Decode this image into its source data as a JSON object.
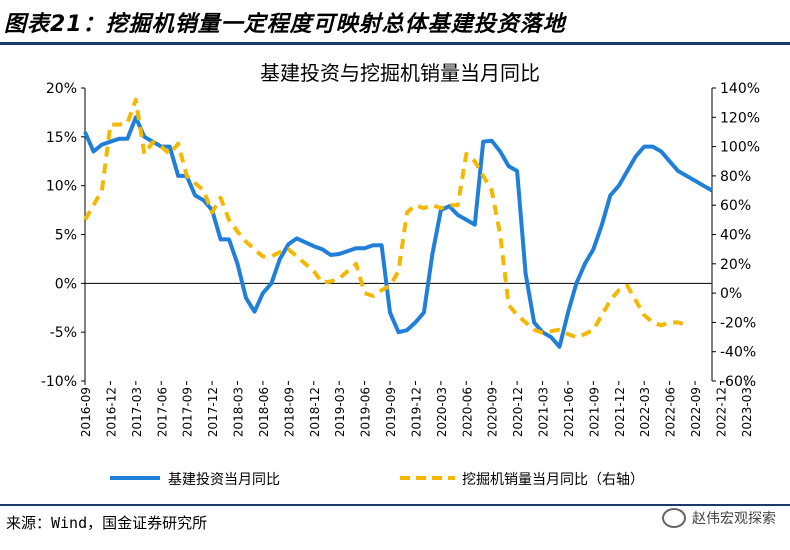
{
  "figure_title": "图表21：挖掘机销量一定程度可映射总体基建投资落地",
  "source_text": "来源：Wind，国金证券研究所",
  "watermark_text": "赵伟宏观探索",
  "colors": {
    "primary": "#1f7fd9",
    "secondary": "#f5b800",
    "rule": "#1a3a6b"
  },
  "chart_data": {
    "type": "line",
    "title": "基建投资与挖掘机销量当月同比",
    "legend_position": "bottom",
    "grid": false,
    "x_start": "2016-09",
    "x_tick_labels": [
      "2016-09",
      "2016-12",
      "2017-03",
      "2017-06",
      "2017-09",
      "2017-12",
      "2018-03",
      "2018-06",
      "2018-09",
      "2018-12",
      "2019-03",
      "2019-06",
      "2019-09",
      "2019-12",
      "2020-03",
      "2020-06",
      "2020-09",
      "2020-12",
      "2021-03",
      "2021-06",
      "2021-09",
      "2021-12",
      "2022-03",
      "2022-06",
      "2022-09",
      "2022-12",
      "2023-03"
    ],
    "y_left": {
      "min": -10,
      "max": 20,
      "step": 5,
      "ticks": [
        "-10%",
        "-5%",
        "0%",
        "5%",
        "10%",
        "15%",
        "20%"
      ]
    },
    "y_right": {
      "min": -60,
      "max": 140,
      "step": 20,
      "ticks": [
        "-60%",
        "-40%",
        "-20%",
        "0%",
        "20%",
        "40%",
        "60%",
        "80%",
        "100%",
        "120%",
        "140%"
      ]
    },
    "series": [
      {
        "name": "基建投资当月同比",
        "axis": "left",
        "style": "solid",
        "values": [
          15.5,
          13.5,
          14.2,
          14.5,
          14.8,
          14.8,
          17.0,
          15.0,
          14.5,
          14.0,
          14.0,
          11.0,
          11.0,
          9.0,
          8.5,
          7.5,
          4.5,
          4.5,
          2.0,
          -1.5,
          -2.9,
          -1.0,
          0.0,
          2.5,
          4.0,
          4.6,
          4.2,
          3.8,
          3.5,
          2.9,
          3.0,
          3.3,
          3.6,
          3.6,
          3.9,
          3.9,
          -3.0,
          -5.0,
          -4.8,
          -4.0,
          -3.0,
          3.0,
          7.5,
          7.9,
          7.0,
          6.5,
          6.0,
          14.5,
          14.6,
          13.5,
          12.0,
          11.5,
          1.0,
          -4.0,
          -5.0,
          -5.5,
          -6.5,
          -3.0,
          0.0,
          2.0,
          3.5,
          6.0,
          9.0,
          10.0,
          11.5,
          13.0,
          14.0,
          14.0,
          13.5,
          12.5,
          11.5,
          11.0,
          10.5,
          10.0,
          9.5
        ]
      },
      {
        "name": "挖掘机销量当月同比（右轴）",
        "axis": "right",
        "style": "dashed",
        "values": [
          50,
          60,
          70,
          115,
          115,
          116,
          132,
          95,
          103,
          100,
          95,
          102,
          80,
          75,
          70,
          55,
          65,
          50,
          42,
          35,
          30,
          25,
          25,
          28,
          30,
          25,
          20,
          15,
          7,
          8,
          10,
          15,
          20,
          0,
          -2,
          2,
          5,
          15,
          55,
          60,
          58,
          60,
          58,
          60,
          60,
          95,
          90,
          80,
          70,
          40,
          -8,
          -15,
          -20,
          -25,
          -27,
          -26,
          -25,
          -28,
          -30,
          -28,
          -25,
          -15,
          -5,
          2,
          5,
          -5,
          -15,
          -20,
          -22,
          -20,
          -20,
          -22
        ]
      }
    ]
  }
}
